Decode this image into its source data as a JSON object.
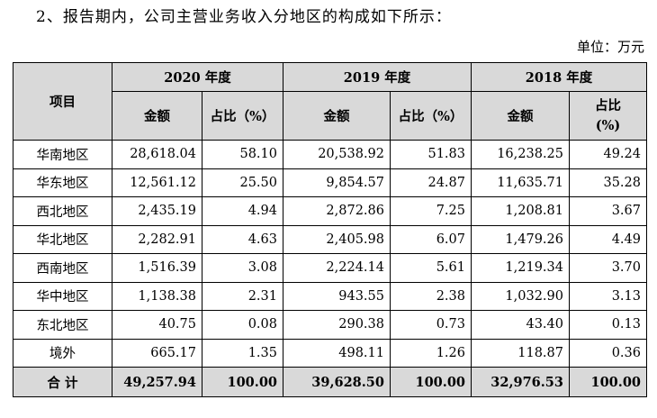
{
  "heading": "2、报告期内，公司主营业务收入分地区的构成如下所示：",
  "unit": "单位：万元",
  "table": {
    "item_header": "项目",
    "years": [
      "2020 年度",
      "2019 年度",
      "2018 年度"
    ],
    "amount_label": "金额",
    "ratio_label": "占比（%）",
    "ratio_label_2018_line1": "占比",
    "ratio_label_2018_line2": "(%)",
    "rows": [
      {
        "region": "华南地区",
        "cells": [
          "28,618.04",
          "58.10",
          "20,538.92",
          "51.83",
          "16,238.25",
          "49.24"
        ]
      },
      {
        "region": "华东地区",
        "cells": [
          "12,561.12",
          "25.50",
          "9,854.57",
          "24.87",
          "11,635.71",
          "35.28"
        ]
      },
      {
        "region": "西北地区",
        "cells": [
          "2,435.19",
          "4.94",
          "2,872.86",
          "7.25",
          "1,208.81",
          "3.67"
        ]
      },
      {
        "region": "华北地区",
        "cells": [
          "2,282.91",
          "4.63",
          "2,405.98",
          "6.07",
          "1,479.26",
          "4.49"
        ]
      },
      {
        "region": "西南地区",
        "cells": [
          "1,516.39",
          "3.08",
          "2,224.14",
          "5.61",
          "1,219.34",
          "3.70"
        ]
      },
      {
        "region": "华中地区",
        "cells": [
          "1,138.38",
          "2.31",
          "943.55",
          "2.38",
          "1,032.90",
          "3.13"
        ]
      },
      {
        "region": "东北地区",
        "cells": [
          "40.75",
          "0.08",
          "290.38",
          "0.73",
          "43.40",
          "0.13"
        ]
      },
      {
        "region": "境外",
        "cells": [
          "665.17",
          "1.35",
          "498.11",
          "1.26",
          "118.87",
          "0.36"
        ]
      }
    ],
    "total": {
      "region": "合 计",
      "cells": [
        "49,257.94",
        "100.00",
        "39,628.50",
        "100.00",
        "32,976.53",
        "100.00"
      ]
    }
  }
}
